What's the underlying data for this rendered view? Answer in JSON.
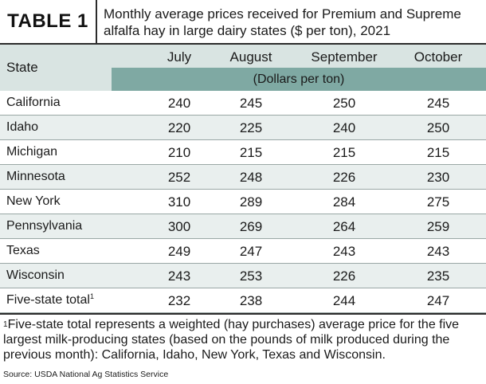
{
  "header": {
    "table_label": "TABLE 1",
    "title": "Monthly average prices received for Premium and Supreme alfalfa hay in large dairy states ($ per ton), 2021"
  },
  "columns": {
    "state": "State",
    "months": [
      "July",
      "August",
      "September",
      "October"
    ],
    "unit": "(Dollars per ton)"
  },
  "rows": [
    {
      "state": "California",
      "footnote_mark": "",
      "values": [
        "240",
        "245",
        "250",
        "245"
      ]
    },
    {
      "state": "Idaho",
      "footnote_mark": "",
      "values": [
        "220",
        "225",
        "240",
        "250"
      ]
    },
    {
      "state": "Michigan",
      "footnote_mark": "",
      "values": [
        "210",
        "215",
        "215",
        "215"
      ]
    },
    {
      "state": "Minnesota",
      "footnote_mark": "",
      "values": [
        "252",
        "248",
        "226",
        "230"
      ]
    },
    {
      "state": "New York",
      "footnote_mark": "",
      "values": [
        "310",
        "289",
        "284",
        "275"
      ]
    },
    {
      "state": "Pennsylvania",
      "footnote_mark": "",
      "values": [
        "300",
        "269",
        "264",
        "259"
      ]
    },
    {
      "state": "Texas",
      "footnote_mark": "",
      "values": [
        "249",
        "247",
        "243",
        "243"
      ]
    },
    {
      "state": "Wisconsin",
      "footnote_mark": "",
      "values": [
        "243",
        "253",
        "226",
        "235"
      ]
    },
    {
      "state": "Five-state total",
      "footnote_mark": "1",
      "values": [
        "232",
        "238",
        "244",
        "247"
      ]
    }
  ],
  "footnote": {
    "mark": "1",
    "text": "Five-state total represents a weighted (hay purchases) average price for the five largest milk-producing states (based on the pounds of milk produced during the previous month): California, Idaho, New York, Texas and Wisconsin."
  },
  "source": "Source: USDA National Ag Statistics Service"
}
